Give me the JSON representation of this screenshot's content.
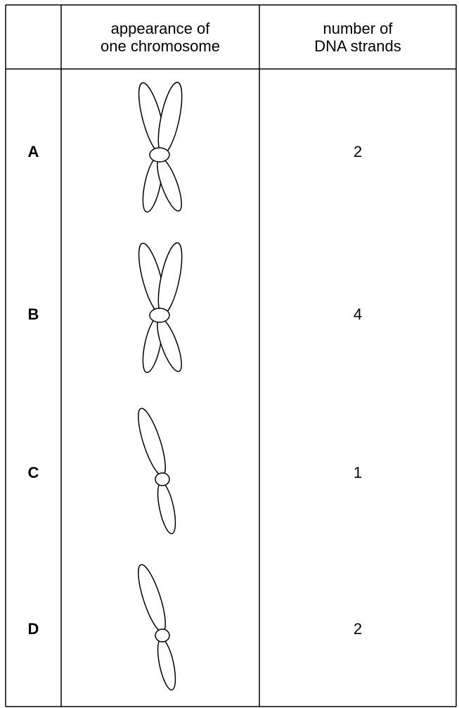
{
  "table": {
    "header": [
      "appearance of\none chromosome",
      "number of\nDNA strands"
    ],
    "rows": [
      [
        "A",
        2
      ],
      [
        "B",
        4
      ],
      [
        "C",
        1
      ],
      [
        "D",
        2
      ]
    ]
  }
}
